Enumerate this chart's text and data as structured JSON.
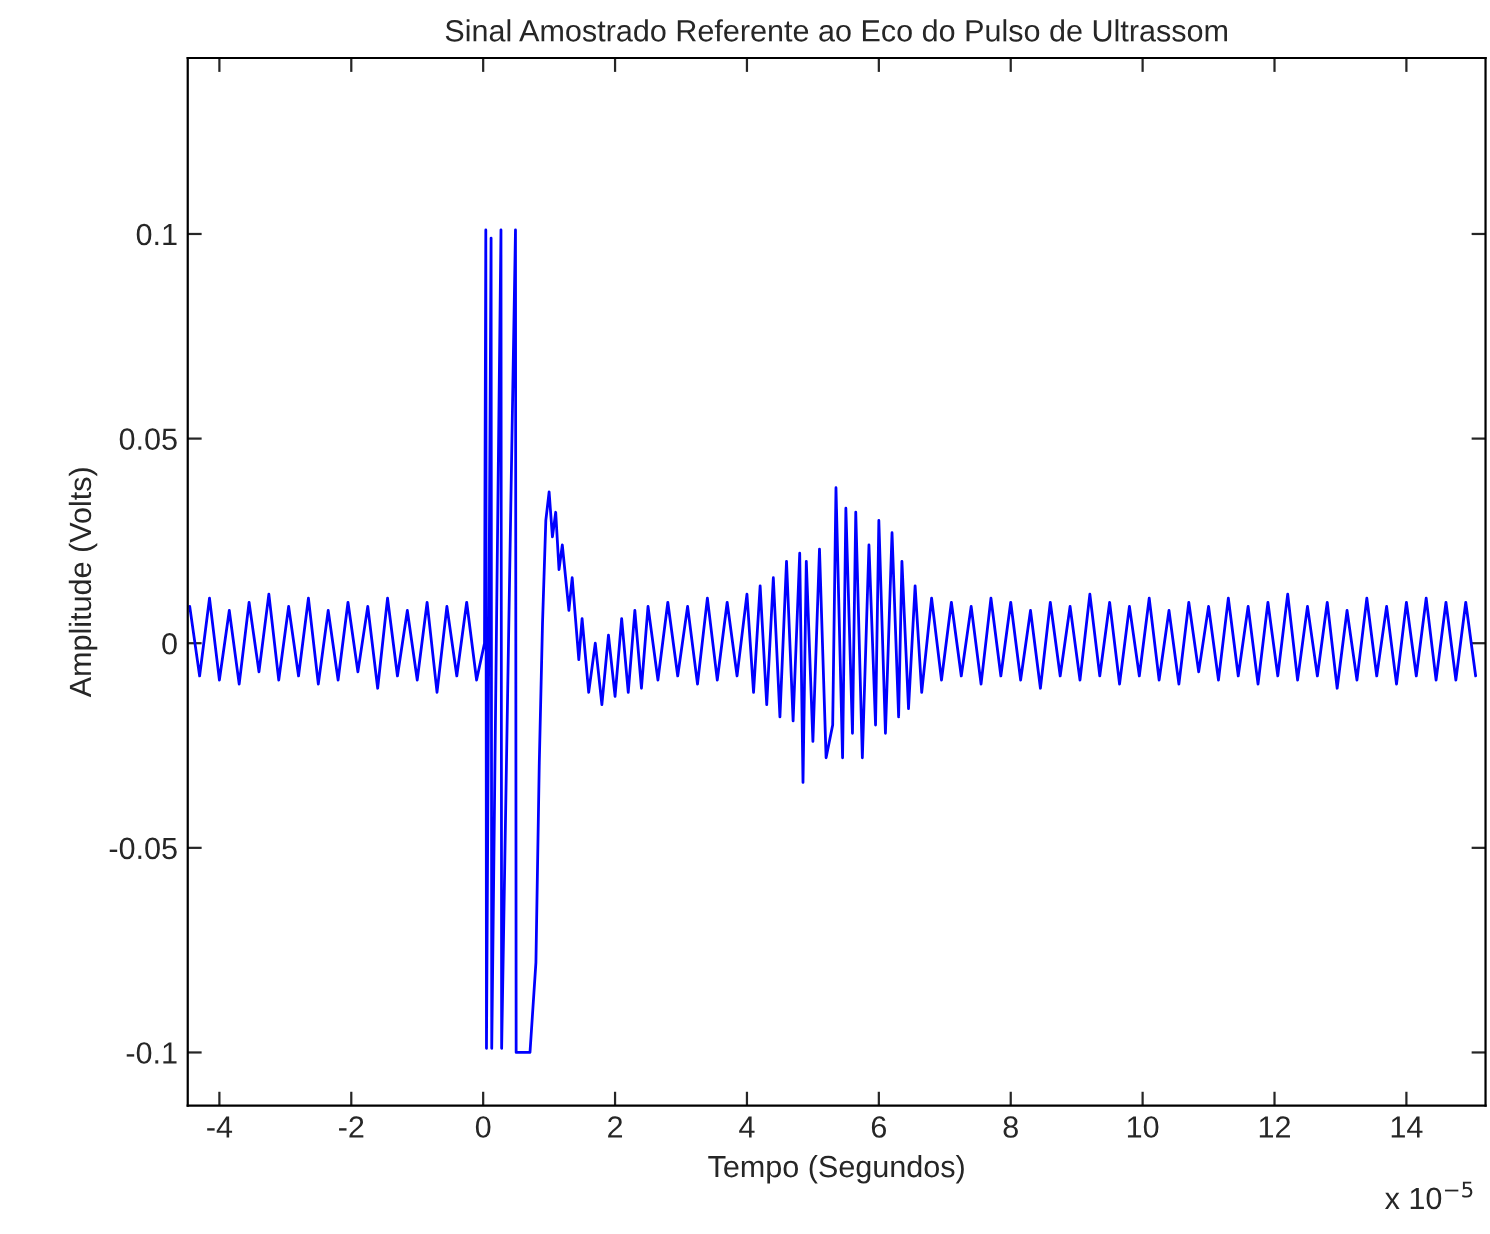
{
  "chart_data": {
    "type": "line",
    "title": "Sinal Amostrado Referente ao Eco do Pulso de Ultrassom",
    "xlabel": "Tempo (Segundos)",
    "ylabel": "Amplitude (Volts)",
    "annotations": [
      "x 10$^{−5}$"
    ],
    "xlim": [
      -4.48,
      15.2
    ],
    "xticks": [
      -4,
      -2,
      0,
      2,
      4,
      6,
      8,
      10,
      12,
      14
    ],
    "ylim": [
      -0.113,
      0.143
    ],
    "yticks": [
      -0.1,
      -0.05,
      0,
      0.05,
      0.1
    ],
    "grid": false,
    "legend": false,
    "line_style": "solid",
    "marker": "none",
    "series": [
      {
        "color": "#0000ff",
        "x": [
          -4.45,
          -4.3,
          -4.15,
          -4.0,
          -3.85,
          -3.7,
          -3.55,
          -3.4,
          -3.25,
          -3.1,
          -2.95,
          -2.8,
          -2.65,
          -2.5,
          -2.35,
          -2.2,
          -2.05,
          -1.9,
          -1.75,
          -1.6,
          -1.45,
          -1.3,
          -1.15,
          -1.0,
          -0.85,
          -0.7,
          -0.55,
          -0.4,
          -0.25,
          -0.1,
          0.02,
          0.04,
          0.05,
          0.12,
          0.13,
          0.27,
          0.28,
          0.49,
          0.5,
          0.71,
          0.8,
          0.85,
          0.9,
          0.95,
          1.0,
          1.05,
          1.1,
          1.15,
          1.2,
          1.3,
          1.35,
          1.45,
          1.5,
          1.6,
          1.7,
          1.8,
          1.9,
          2.0,
          2.1,
          2.2,
          2.3,
          2.4,
          2.5,
          2.65,
          2.8,
          2.95,
          3.1,
          3.25,
          3.4,
          3.55,
          3.7,
          3.85,
          4.0,
          4.1,
          4.2,
          4.3,
          4.4,
          4.5,
          4.6,
          4.7,
          4.8,
          4.85,
          4.9,
          5.0,
          5.1,
          5.2,
          5.3,
          5.35,
          5.45,
          5.5,
          5.6,
          5.65,
          5.75,
          5.85,
          5.95,
          6.0,
          6.1,
          6.2,
          6.3,
          6.35,
          6.45,
          6.55,
          6.65,
          6.8,
          6.95,
          7.1,
          7.25,
          7.4,
          7.55,
          7.7,
          7.85,
          8.0,
          8.15,
          8.3,
          8.45,
          8.6,
          8.75,
          8.9,
          9.05,
          9.2,
          9.35,
          9.5,
          9.65,
          9.8,
          9.95,
          10.1,
          10.25,
          10.4,
          10.55,
          10.7,
          10.85,
          11.0,
          11.15,
          11.3,
          11.45,
          11.6,
          11.75,
          11.9,
          12.05,
          12.2,
          12.35,
          12.5,
          12.65,
          12.8,
          12.95,
          13.1,
          13.25,
          13.4,
          13.55,
          13.7,
          13.85,
          14.0,
          14.15,
          14.3,
          14.45,
          14.6,
          14.75,
          14.9,
          15.05
        ],
        "values": [
          0.009,
          -0.008,
          0.011,
          -0.009,
          0.008,
          -0.01,
          0.01,
          -0.007,
          0.012,
          -0.009,
          0.009,
          -0.008,
          0.011,
          -0.01,
          0.008,
          -0.009,
          0.01,
          -0.007,
          0.009,
          -0.011,
          0.011,
          -0.008,
          0.008,
          -0.009,
          0.01,
          -0.012,
          0.009,
          -0.008,
          0.01,
          -0.009,
          0.0,
          0.101,
          -0.099,
          0.099,
          -0.099,
          0.101,
          -0.099,
          0.101,
          -0.1,
          -0.1,
          -0.078,
          -0.03,
          0.005,
          0.03,
          0.037,
          0.026,
          0.032,
          0.018,
          0.024,
          0.008,
          0.016,
          -0.004,
          0.006,
          -0.012,
          0.0,
          -0.015,
          0.002,
          -0.013,
          0.006,
          -0.012,
          0.008,
          -0.011,
          0.009,
          -0.009,
          0.01,
          -0.008,
          0.009,
          -0.01,
          0.011,
          -0.009,
          0.01,
          -0.008,
          0.012,
          -0.012,
          0.014,
          -0.015,
          0.016,
          -0.018,
          0.02,
          -0.019,
          0.022,
          -0.034,
          0.02,
          -0.024,
          0.023,
          -0.028,
          -0.02,
          0.038,
          -0.028,
          0.033,
          -0.022,
          0.032,
          -0.028,
          0.024,
          -0.02,
          0.03,
          -0.022,
          0.027,
          -0.018,
          0.02,
          -0.016,
          0.014,
          -0.012,
          0.011,
          -0.009,
          0.01,
          -0.008,
          0.009,
          -0.01,
          0.011,
          -0.008,
          0.01,
          -0.009,
          0.008,
          -0.011,
          0.01,
          -0.008,
          0.009,
          -0.009,
          0.012,
          -0.008,
          0.01,
          -0.01,
          0.009,
          -0.008,
          0.011,
          -0.009,
          0.008,
          -0.01,
          0.01,
          -0.007,
          0.009,
          -0.009,
          0.011,
          -0.008,
          0.009,
          -0.01,
          0.01,
          -0.008,
          0.012,
          -0.009,
          0.009,
          -0.008,
          0.01,
          -0.011,
          0.008,
          -0.009,
          0.011,
          -0.008,
          0.009,
          -0.01,
          0.01,
          -0.008,
          0.011,
          -0.009,
          0.01,
          -0.009,
          0.01,
          -0.008
        ]
      }
    ]
  }
}
